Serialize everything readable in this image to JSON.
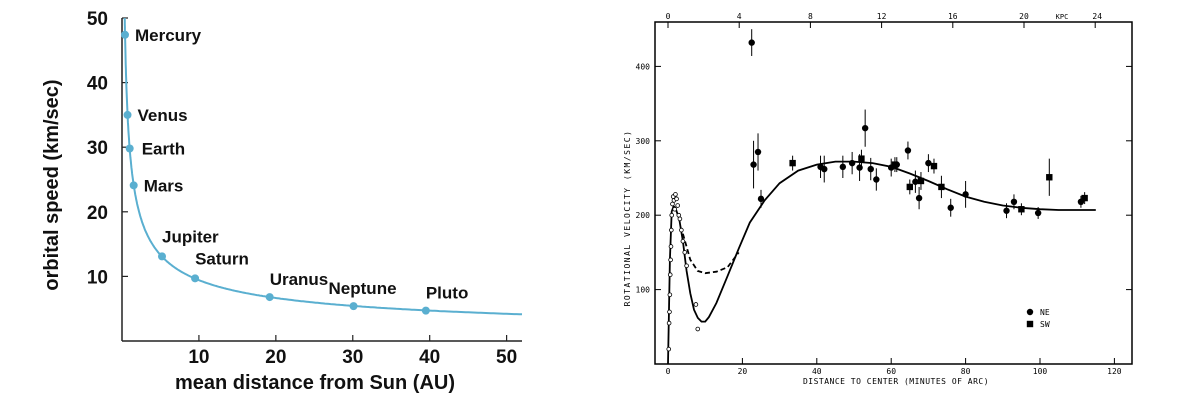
{
  "chart_data": [
    {
      "type": "line",
      "title": "",
      "xlabel": "mean distance from Sun (AU)",
      "ylabel": "orbital speed (km/sec)",
      "xlim": [
        0,
        52
      ],
      "ylim": [
        0,
        50
      ],
      "x_ticks": [
        "10",
        "20",
        "30",
        "40",
        "50"
      ],
      "y_ticks": [
        "10",
        "20",
        "30",
        "40",
        "50"
      ],
      "color": "#5aafd0",
      "grid": false,
      "curve": "keplerian",
      "points": [
        {
          "name": "Mercury",
          "x": 0.39,
          "y": 47.4
        },
        {
          "name": "Venus",
          "x": 0.72,
          "y": 35.0
        },
        {
          "name": "Earth",
          "x": 1.0,
          "y": 29.8
        },
        {
          "name": "Mars",
          "x": 1.52,
          "y": 24.1
        },
        {
          "name": "Jupiter",
          "x": 5.2,
          "y": 13.1
        },
        {
          "name": "Saturn",
          "x": 9.5,
          "y": 9.7
        },
        {
          "name": "Uranus",
          "x": 19.2,
          "y": 6.8
        },
        {
          "name": "Neptune",
          "x": 30.1,
          "y": 5.4
        },
        {
          "name": "Pluto",
          "x": 39.5,
          "y": 4.7
        }
      ]
    },
    {
      "type": "scatter",
      "title": "",
      "xlabel": "DISTANCE TO CENTER (MINUTES OF ARC)",
      "ylabel": "ROTATIONAL VELOCITY (KM/SEC)",
      "top_axis_label": "KPC",
      "xlim": [
        -3,
        120
      ],
      "ylim": [
        0,
        460
      ],
      "x_ticks": [
        "0",
        "20",
        "40",
        "60",
        "80",
        "100",
        "120"
      ],
      "y_ticks": [
        "100",
        "200",
        "300",
        "400"
      ],
      "top_ticks": [
        "0",
        "4",
        "8",
        "12",
        "16",
        "20",
        "24"
      ],
      "legend": [
        {
          "marker": "circle",
          "label": "NE"
        },
        {
          "marker": "square",
          "label": "SW"
        }
      ],
      "legend_position": "bottom-right",
      "series": [
        {
          "marker": "circle",
          "points": [
            {
              "x": 22.5,
              "y": 432,
              "err": 18
            },
            {
              "x": 23.0,
              "y": 268,
              "err": 32
            },
            {
              "x": 24.2,
              "y": 285,
              "err": 25
            },
            {
              "x": 25.0,
              "y": 222,
              "err": 12
            },
            {
              "x": 41.0,
              "y": 265,
              "err": 15
            },
            {
              "x": 42.0,
              "y": 262,
              "err": 18
            },
            {
              "x": 47.0,
              "y": 265,
              "err": 15
            },
            {
              "x": 49.5,
              "y": 270,
              "err": 15
            },
            {
              "x": 51.5,
              "y": 264,
              "err": 18
            },
            {
              "x": 53.0,
              "y": 317,
              "err": 25
            },
            {
              "x": 54.5,
              "y": 262,
              "err": 15
            },
            {
              "x": 56.0,
              "y": 248,
              "err": 15
            },
            {
              "x": 60.0,
              "y": 264,
              "err": 12
            },
            {
              "x": 61.5,
              "y": 268,
              "err": 10
            },
            {
              "x": 64.5,
              "y": 287,
              "err": 12
            },
            {
              "x": 66.5,
              "y": 245,
              "err": 15
            },
            {
              "x": 67.5,
              "y": 223,
              "err": 15
            },
            {
              "x": 70.0,
              "y": 270,
              "err": 12
            },
            {
              "x": 76.0,
              "y": 210,
              "err": 12
            },
            {
              "x": 80.0,
              "y": 228,
              "err": 18
            },
            {
              "x": 91.0,
              "y": 206,
              "err": 10
            },
            {
              "x": 93.0,
              "y": 218,
              "err": 10
            },
            {
              "x": 99.5,
              "y": 203,
              "err": 8
            },
            {
              "x": 111.0,
              "y": 218,
              "err": 8
            }
          ]
        },
        {
          "marker": "square",
          "points": [
            {
              "x": 33.5,
              "y": 270,
              "err": 10
            },
            {
              "x": 52.0,
              "y": 276,
              "err": 12
            },
            {
              "x": 61.0,
              "y": 268,
              "err": 10
            },
            {
              "x": 65.0,
              "y": 238,
              "err": 10
            },
            {
              "x": 68.0,
              "y": 246,
              "err": 12
            },
            {
              "x": 71.5,
              "y": 266,
              "err": 10
            },
            {
              "x": 73.5,
              "y": 238,
              "err": 15
            },
            {
              "x": 95.0,
              "y": 208,
              "err": 8
            },
            {
              "x": 102.5,
              "y": 251,
              "err": 25
            },
            {
              "x": 112.0,
              "y": 223,
              "err": 8
            }
          ]
        },
        {
          "marker": "open-circle",
          "points": [
            {
              "x": 0.2,
              "y": 20
            },
            {
              "x": 0.3,
              "y": 55
            },
            {
              "x": 0.4,
              "y": 70
            },
            {
              "x": 0.5,
              "y": 93
            },
            {
              "x": 0.6,
              "y": 120
            },
            {
              "x": 0.7,
              "y": 140
            },
            {
              "x": 0.8,
              "y": 158
            },
            {
              "x": 0.9,
              "y": 180
            },
            {
              "x": 1.0,
              "y": 200
            },
            {
              "x": 1.2,
              "y": 215
            },
            {
              "x": 1.4,
              "y": 225
            },
            {
              "x": 1.6,
              "y": 220
            },
            {
              "x": 1.8,
              "y": 208
            },
            {
              "x": 2.0,
              "y": 228
            },
            {
              "x": 2.3,
              "y": 222
            },
            {
              "x": 2.6,
              "y": 213
            },
            {
              "x": 2.9,
              "y": 200
            },
            {
              "x": 3.2,
              "y": 195
            },
            {
              "x": 3.6,
              "y": 180
            },
            {
              "x": 4.0,
              "y": 165
            },
            {
              "x": 4.5,
              "y": 150
            },
            {
              "x": 5.0,
              "y": 132
            },
            {
              "x": 7.5,
              "y": 80
            },
            {
              "x": 8.0,
              "y": 47
            }
          ]
        }
      ],
      "curves": [
        {
          "style": "solid",
          "points": [
            [
              0,
              0
            ],
            [
              0.5,
              140
            ],
            [
              1.0,
              205
            ],
            [
              1.5,
              212
            ],
            [
              2.0,
              210
            ],
            [
              3.0,
              195
            ],
            [
              4.0,
              165
            ],
            [
              5.0,
              125
            ],
            [
              6.0,
              95
            ],
            [
              7.0,
              73
            ],
            [
              8.0,
              62
            ],
            [
              9.0,
              57
            ],
            [
              10.0,
              57
            ],
            [
              11.0,
              63
            ],
            [
              13.0,
              82
            ],
            [
              16.0,
              118
            ],
            [
              19.0,
              155
            ],
            [
              22.0,
              190
            ],
            [
              26.0,
              220
            ],
            [
              30.0,
              243
            ],
            [
              35.0,
              260
            ],
            [
              40.0,
              268
            ],
            [
              45.0,
              272
            ],
            [
              50.0,
              272
            ],
            [
              55.0,
              270
            ],
            [
              60.0,
              265
            ],
            [
              65.0,
              256
            ],
            [
              70.0,
              246
            ],
            [
              75.0,
              235
            ],
            [
              80.0,
              225
            ],
            [
              85.0,
              218
            ],
            [
              90.0,
              213
            ],
            [
              95.0,
              210
            ],
            [
              100.0,
              208
            ],
            [
              105.0,
              207
            ],
            [
              110.0,
              207
            ],
            [
              115.0,
              207
            ]
          ]
        },
        {
          "style": "dashed",
          "points": [
            [
              4.0,
              175
            ],
            [
              6.0,
              140
            ],
            [
              8.0,
              125
            ],
            [
              10.0,
              122
            ],
            [
              13.0,
              124
            ],
            [
              16.0,
              130
            ],
            [
              19.0,
              150
            ]
          ]
        }
      ]
    }
  ]
}
